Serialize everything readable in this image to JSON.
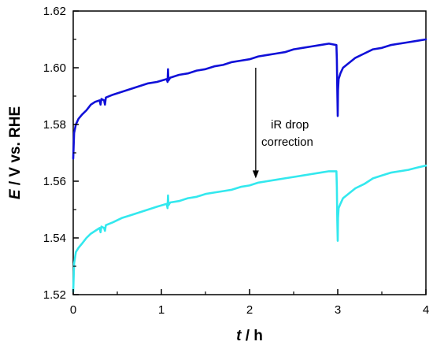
{
  "chart_data": {
    "type": "line",
    "xlabel_var": "t",
    "xlabel_unit": " / h",
    "ylabel_var": "E",
    "ylabel_unit": " / V vs. RHE",
    "xlim": [
      0,
      4
    ],
    "ylim": [
      1.52,
      1.62
    ],
    "xticks": [
      0,
      1,
      2,
      3,
      4
    ],
    "yticks": [
      1.52,
      1.54,
      1.56,
      1.58,
      1.6,
      1.62
    ],
    "ytick_labels": [
      "1.52",
      "1.54",
      "1.56",
      "1.58",
      "1.60",
      "1.62"
    ],
    "grid": false,
    "annotation": {
      "lines": [
        "iR drop",
        "correction"
      ],
      "arrow_from": [
        2.07,
        1.6
      ],
      "arrow_to": [
        2.07,
        1.561
      ]
    },
    "series": [
      {
        "color": "#1010d8",
        "points": [
          [
            0,
            1.568
          ],
          [
            0.01,
            1.577
          ],
          [
            0.03,
            1.58
          ],
          [
            0.06,
            1.582
          ],
          [
            0.1,
            1.5835
          ],
          [
            0.15,
            1.585
          ],
          [
            0.2,
            1.587
          ],
          [
            0.25,
            1.588
          ],
          [
            0.3,
            1.5885
          ],
          [
            0.31,
            1.587
          ],
          [
            0.32,
            1.589
          ],
          [
            0.35,
            1.5885
          ],
          [
            0.36,
            1.587
          ],
          [
            0.37,
            1.5895
          ],
          [
            0.45,
            1.5905
          ],
          [
            0.55,
            1.5915
          ],
          [
            0.65,
            1.5925
          ],
          [
            0.75,
            1.5935
          ],
          [
            0.85,
            1.5945
          ],
          [
            0.95,
            1.595
          ],
          [
            1.06,
            1.596
          ],
          [
            1.07,
            1.595
          ],
          [
            1.075,
            1.5995
          ],
          [
            1.08,
            1.5955
          ],
          [
            1.1,
            1.5965
          ],
          [
            1.2,
            1.5975
          ],
          [
            1.3,
            1.598
          ],
          [
            1.4,
            1.599
          ],
          [
            1.5,
            1.5995
          ],
          [
            1.6,
            1.6005
          ],
          [
            1.7,
            1.601
          ],
          [
            1.8,
            1.602
          ],
          [
            1.9,
            1.6025
          ],
          [
            2.0,
            1.603
          ],
          [
            2.1,
            1.604
          ],
          [
            2.2,
            1.6045
          ],
          [
            2.3,
            1.605
          ],
          [
            2.4,
            1.6055
          ],
          [
            2.5,
            1.6065
          ],
          [
            2.6,
            1.607
          ],
          [
            2.7,
            1.6075
          ],
          [
            2.8,
            1.608
          ],
          [
            2.9,
            1.6085
          ],
          [
            2.985,
            1.608
          ],
          [
            2.99,
            1.603
          ],
          [
            2.995,
            1.592
          ],
          [
            3.0,
            1.583
          ],
          [
            3.003,
            1.592
          ],
          [
            3.01,
            1.596
          ],
          [
            3.03,
            1.598
          ],
          [
            3.06,
            1.6
          ],
          [
            3.1,
            1.601
          ],
          [
            3.2,
            1.6035
          ],
          [
            3.3,
            1.605
          ],
          [
            3.4,
            1.6065
          ],
          [
            3.5,
            1.607
          ],
          [
            3.6,
            1.608
          ],
          [
            3.7,
            1.6085
          ],
          [
            3.8,
            1.609
          ],
          [
            3.9,
            1.6095
          ],
          [
            4.0,
            1.61
          ]
        ]
      },
      {
        "color": "#33e8ee",
        "points": [
          [
            0,
            1.521
          ],
          [
            0.01,
            1.531
          ],
          [
            0.03,
            1.535
          ],
          [
            0.06,
            1.5365
          ],
          [
            0.1,
            1.538
          ],
          [
            0.15,
            1.54
          ],
          [
            0.2,
            1.5415
          ],
          [
            0.25,
            1.5425
          ],
          [
            0.3,
            1.5435
          ],
          [
            0.31,
            1.542
          ],
          [
            0.32,
            1.544
          ],
          [
            0.35,
            1.5435
          ],
          [
            0.36,
            1.5425
          ],
          [
            0.37,
            1.5445
          ],
          [
            0.45,
            1.5455
          ],
          [
            0.55,
            1.547
          ],
          [
            0.65,
            1.548
          ],
          [
            0.75,
            1.549
          ],
          [
            0.85,
            1.55
          ],
          [
            0.95,
            1.551
          ],
          [
            1.06,
            1.552
          ],
          [
            1.07,
            1.5505
          ],
          [
            1.075,
            1.555
          ],
          [
            1.08,
            1.5515
          ],
          [
            1.1,
            1.5525
          ],
          [
            1.2,
            1.553
          ],
          [
            1.3,
            1.554
          ],
          [
            1.4,
            1.5545
          ],
          [
            1.5,
            1.5555
          ],
          [
            1.6,
            1.556
          ],
          [
            1.7,
            1.5565
          ],
          [
            1.8,
            1.557
          ],
          [
            1.9,
            1.558
          ],
          [
            2.0,
            1.5585
          ],
          [
            2.1,
            1.5595
          ],
          [
            2.2,
            1.56
          ],
          [
            2.3,
            1.5605
          ],
          [
            2.4,
            1.561
          ],
          [
            2.5,
            1.5615
          ],
          [
            2.6,
            1.562
          ],
          [
            2.7,
            1.5625
          ],
          [
            2.8,
            1.563
          ],
          [
            2.9,
            1.5635
          ],
          [
            2.985,
            1.5635
          ],
          [
            2.99,
            1.558
          ],
          [
            2.995,
            1.546
          ],
          [
            3.0,
            1.539
          ],
          [
            3.003,
            1.547
          ],
          [
            3.01,
            1.5505
          ],
          [
            3.03,
            1.552
          ],
          [
            3.06,
            1.554
          ],
          [
            3.1,
            1.555
          ],
          [
            3.2,
            1.5575
          ],
          [
            3.3,
            1.559
          ],
          [
            3.4,
            1.561
          ],
          [
            3.5,
            1.562
          ],
          [
            3.6,
            1.563
          ],
          [
            3.7,
            1.5635
          ],
          [
            3.8,
            1.564
          ],
          [
            3.9,
            1.5648
          ],
          [
            4.0,
            1.5655
          ]
        ]
      }
    ]
  }
}
